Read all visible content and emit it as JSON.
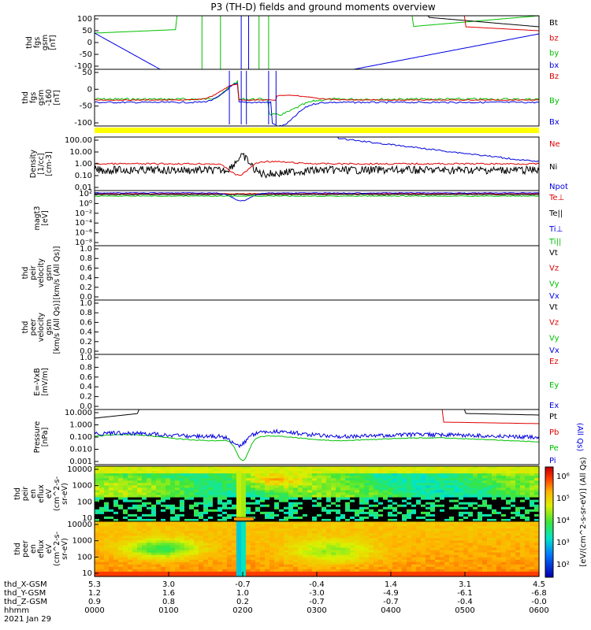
{
  "chart_data": {
    "type": "line",
    "title": "P3 (TH-D) fields and ground moments overview",
    "date": "2021 Jan 29",
    "x_ticks": [
      "0000",
      "0100",
      "0200",
      "0300",
      "0400",
      "0500",
      "0600"
    ],
    "ephemeris": [
      {
        "label": "thd_X-GSM",
        "values": [
          "5.3",
          "3.0",
          "-0.7",
          "-0.4",
          "1.4",
          "3.1",
          "4.5"
        ]
      },
      {
        "label": "thd_Y-GSM",
        "values": [
          "1.2",
          "1.6",
          "1.0",
          "-3.0",
          "-4.9",
          "-6.1",
          "-6.8"
        ]
      },
      {
        "label": "thd_Z-GSM",
        "values": [
          "0.9",
          "0.8",
          "0.2",
          "-0.7",
          "-0.7",
          "-0.4",
          "-0.0"
        ]
      },
      {
        "label": "hhmm",
        "values": [
          "0000",
          "0100",
          "0200",
          "0300",
          "0400",
          "0500",
          "0600"
        ]
      }
    ],
    "panels": [
      {
        "id": "fgs",
        "ylabel": [
          "thd",
          "fgs",
          "gsm",
          "[nT]"
        ],
        "ticks": [
          "100",
          "50",
          "0",
          "-50",
          "-100"
        ],
        "legend": [
          {
            "name": "Bt",
            "color": "#000000"
          },
          {
            "name": "bz",
            "color": "#e00000"
          },
          {
            "name": "by",
            "color": "#00c000"
          },
          {
            "name": "bx",
            "color": "#0000e0"
          }
        ]
      },
      {
        "id": "fgs_zoom",
        "ylabel": [
          "thd",
          "fgs",
          "gsm",
          "-160",
          "[nT]"
        ],
        "ticks": [
          "50",
          "0",
          "-50",
          "-100"
        ],
        "legend": [
          {
            "name": "Bz",
            "color": "#e00000"
          },
          {
            "name": "By",
            "color": "#00c000"
          },
          {
            "name": "Bx",
            "color": "#0000e0"
          }
        ]
      },
      {
        "id": "density",
        "ylabel": [
          "Density",
          "[1/cc]",
          "[cm-3]"
        ],
        "ticks": [
          "100.00",
          "10.00",
          "1.00",
          "0.10",
          "0.01"
        ],
        "legend": [
          {
            "name": "Ne",
            "color": "#e00000"
          },
          {
            "name": "Ni",
            "color": "#000000"
          },
          {
            "name": "Npot",
            "color": "#0000e0"
          }
        ]
      },
      {
        "id": "temp",
        "ylabel": [
          "magt3",
          "[eV]"
        ],
        "ticks": [
          "10²",
          "10⁰",
          "10⁻²",
          "10⁻⁴",
          "10⁻⁶",
          "10⁻⁸"
        ],
        "legend": [
          {
            "name": "Te⊥",
            "color": "#e00000"
          },
          {
            "name": "Te||",
            "color": "#000000"
          },
          {
            "name": "Ti⊥",
            "color": "#0000e0"
          },
          {
            "name": "Ti||",
            "color": "#00c000"
          }
        ]
      },
      {
        "id": "vi",
        "ylabel": [
          "thd",
          "peir",
          "velocity",
          "gsm",
          "[km/s (All Qs)]"
        ],
        "ticks": [
          "1.0",
          "0.8",
          "0.6",
          "0.4",
          "0.2",
          "0.0"
        ],
        "legend": [
          {
            "name": "Vt",
            "color": "#000000"
          },
          {
            "name": "Vz",
            "color": "#e00000"
          },
          {
            "name": "Vy",
            "color": "#00c000"
          },
          {
            "name": "Vx",
            "color": "#0000e0"
          }
        ]
      },
      {
        "id": "ve",
        "ylabel": [
          "thd",
          "peer",
          "velocity",
          "gsm",
          "[km/s (All Qs)]"
        ],
        "ticks": [
          "1.0",
          "0.8",
          "0.6",
          "0.4",
          "0.2",
          "0.0"
        ],
        "legend": [
          {
            "name": "Vt",
            "color": "#000000"
          },
          {
            "name": "Vz",
            "color": "#e00000"
          },
          {
            "name": "Vy",
            "color": "#00c000"
          },
          {
            "name": "Vx",
            "color": "#0000e0"
          }
        ]
      },
      {
        "id": "efield",
        "ylabel": [
          "E=-VxB",
          "[mV/m]"
        ],
        "ticks": [
          "1.0",
          "0.8",
          "0.6",
          "0.4",
          "0.2",
          "0.0"
        ],
        "legend": [
          {
            "name": "Ez",
            "color": "#e00000"
          },
          {
            "name": "Ey",
            "color": "#00c000"
          },
          {
            "name": "Ex",
            "color": "#0000e0"
          }
        ]
      },
      {
        "id": "pressure",
        "ylabel": [
          "Pressure",
          "[nPa]"
        ],
        "ticks": [
          "10.000",
          "1.000",
          "0.100",
          "0.010",
          "0.001"
        ],
        "legend": [
          {
            "name": "Pt",
            "color": "#000000"
          },
          {
            "name": "Pb",
            "color": "#e00000"
          },
          {
            "name": "Pe",
            "color": "#00c000"
          },
          {
            "name": "Pi",
            "color": "#0000e0"
          }
        ],
        "legend_note": "(All Qs)"
      },
      {
        "id": "ion_spec",
        "ylabel": [
          "thd",
          "peir",
          "en",
          "eflux",
          "eV",
          "(cm^2-s-",
          "sr-eV)"
        ],
        "ticks": [
          "10000",
          "1000",
          "100",
          "10"
        ]
      },
      {
        "id": "ele_spec",
        "ylabel": [
          "thd",
          "peer",
          "en",
          "eflux",
          "eV",
          "(cm^2-s-",
          "sr-eV)"
        ],
        "ticks": [
          "10000",
          "1000",
          "100",
          "10"
        ]
      }
    ],
    "colorbar": {
      "ticks": [
        "10⁶",
        "10⁵",
        "10⁴",
        "10³",
        "10²"
      ],
      "label": "[eV/(cm^2-s-sr-eV)] (All Qs)"
    }
  }
}
